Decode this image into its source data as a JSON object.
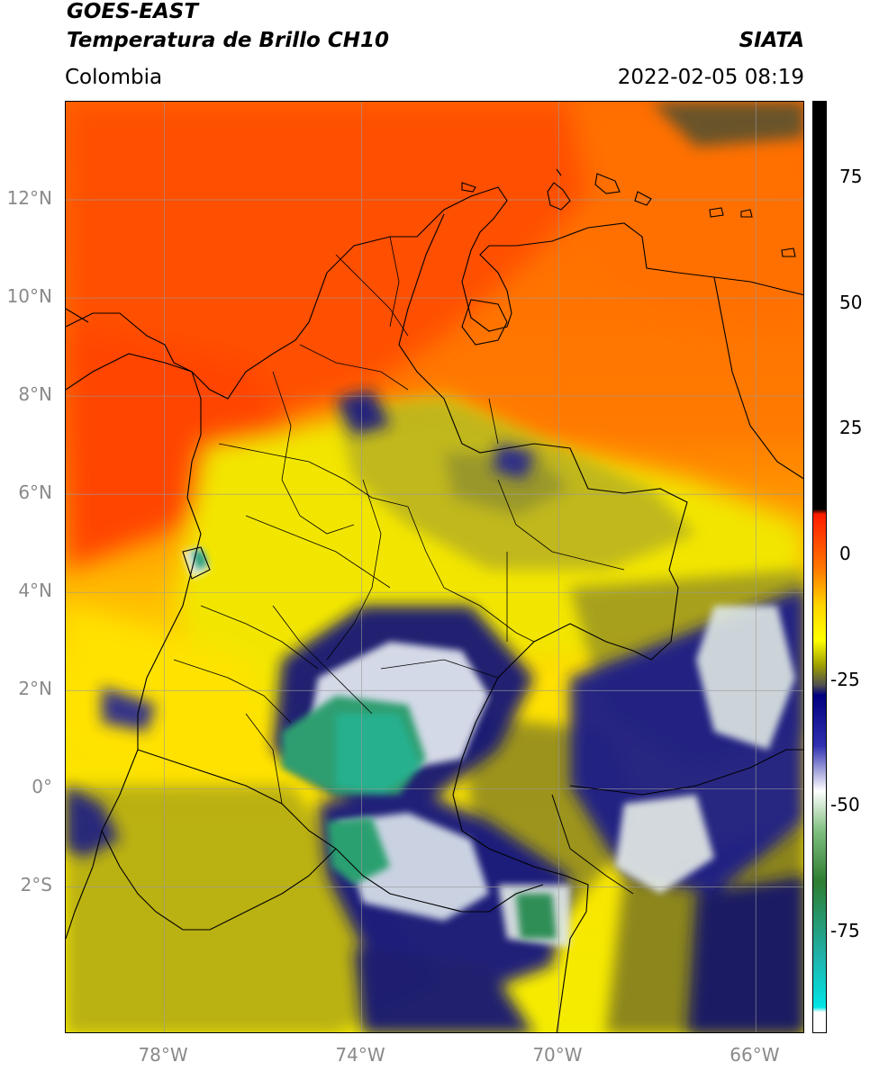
{
  "header": {
    "satellite": "GOES-EAST",
    "product": "Temperatura de Brillo CH10",
    "region": "Colombia",
    "agency": "SIATA",
    "datetime": "2022-02-05 08:19"
  },
  "map": {
    "lon_range": [
      -80,
      -65
    ],
    "lat_range": [
      -5,
      14
    ],
    "lat_ticks": [
      {
        "value": 12,
        "label": "12°N"
      },
      {
        "value": 10,
        "label": "10°N"
      },
      {
        "value": 8,
        "label": "8°N"
      },
      {
        "value": 6,
        "label": "6°N"
      },
      {
        "value": 4,
        "label": "4°N"
      },
      {
        "value": 2,
        "label": "2°N"
      },
      {
        "value": 0,
        "label": "0°"
      },
      {
        "value": -2,
        "label": "2°S"
      }
    ],
    "lon_ticks": [
      {
        "value": -78,
        "label": "78°W"
      },
      {
        "value": -74,
        "label": "74°W"
      },
      {
        "value": -70,
        "label": "70°W"
      },
      {
        "value": -66,
        "label": "66°W"
      }
    ],
    "grid": true
  },
  "colorbar": {
    "range": [
      -95,
      90
    ],
    "ticks": [
      {
        "value": 75,
        "label": "75"
      },
      {
        "value": 50,
        "label": "50"
      },
      {
        "value": 25,
        "label": "25"
      },
      {
        "value": 0,
        "label": "0"
      },
      {
        "value": -25,
        "label": "-25"
      },
      {
        "value": -50,
        "label": "-50"
      },
      {
        "value": -75,
        "label": "-75"
      }
    ],
    "stops": [
      {
        "value": 90,
        "color": "#000000"
      },
      {
        "value": 9,
        "color": "#000000"
      },
      {
        "value": 8,
        "color": "#ff1a00"
      },
      {
        "value": -3,
        "color": "#ff7a00"
      },
      {
        "value": -10,
        "color": "#ffd400"
      },
      {
        "value": -17,
        "color": "#ffff00"
      },
      {
        "value": -22,
        "color": "#a0a000"
      },
      {
        "value": -26,
        "color": "#505050"
      },
      {
        "value": -28,
        "color": "#000080"
      },
      {
        "value": -38,
        "color": "#3030b0"
      },
      {
        "value": -47,
        "color": "#ffffff"
      },
      {
        "value": -55,
        "color": "#7fbf7f"
      },
      {
        "value": -65,
        "color": "#2e7d32"
      },
      {
        "value": -80,
        "color": "#20b2aa"
      },
      {
        "value": -90,
        "color": "#00e5e5"
      },
      {
        "value": -91,
        "color": "#ffffff"
      },
      {
        "value": -95,
        "color": "#ffffff"
      }
    ]
  },
  "colors": {
    "warm_sea": "#ff5a00",
    "orange": "#ff8c00",
    "land_yellow": "#f2ea00",
    "olive": "#8a8a1a",
    "deep_blue": "#101070",
    "cloud_white": "#eef2f0",
    "cold_green": "#2e9a6a",
    "very_cold": "#22b28a"
  }
}
